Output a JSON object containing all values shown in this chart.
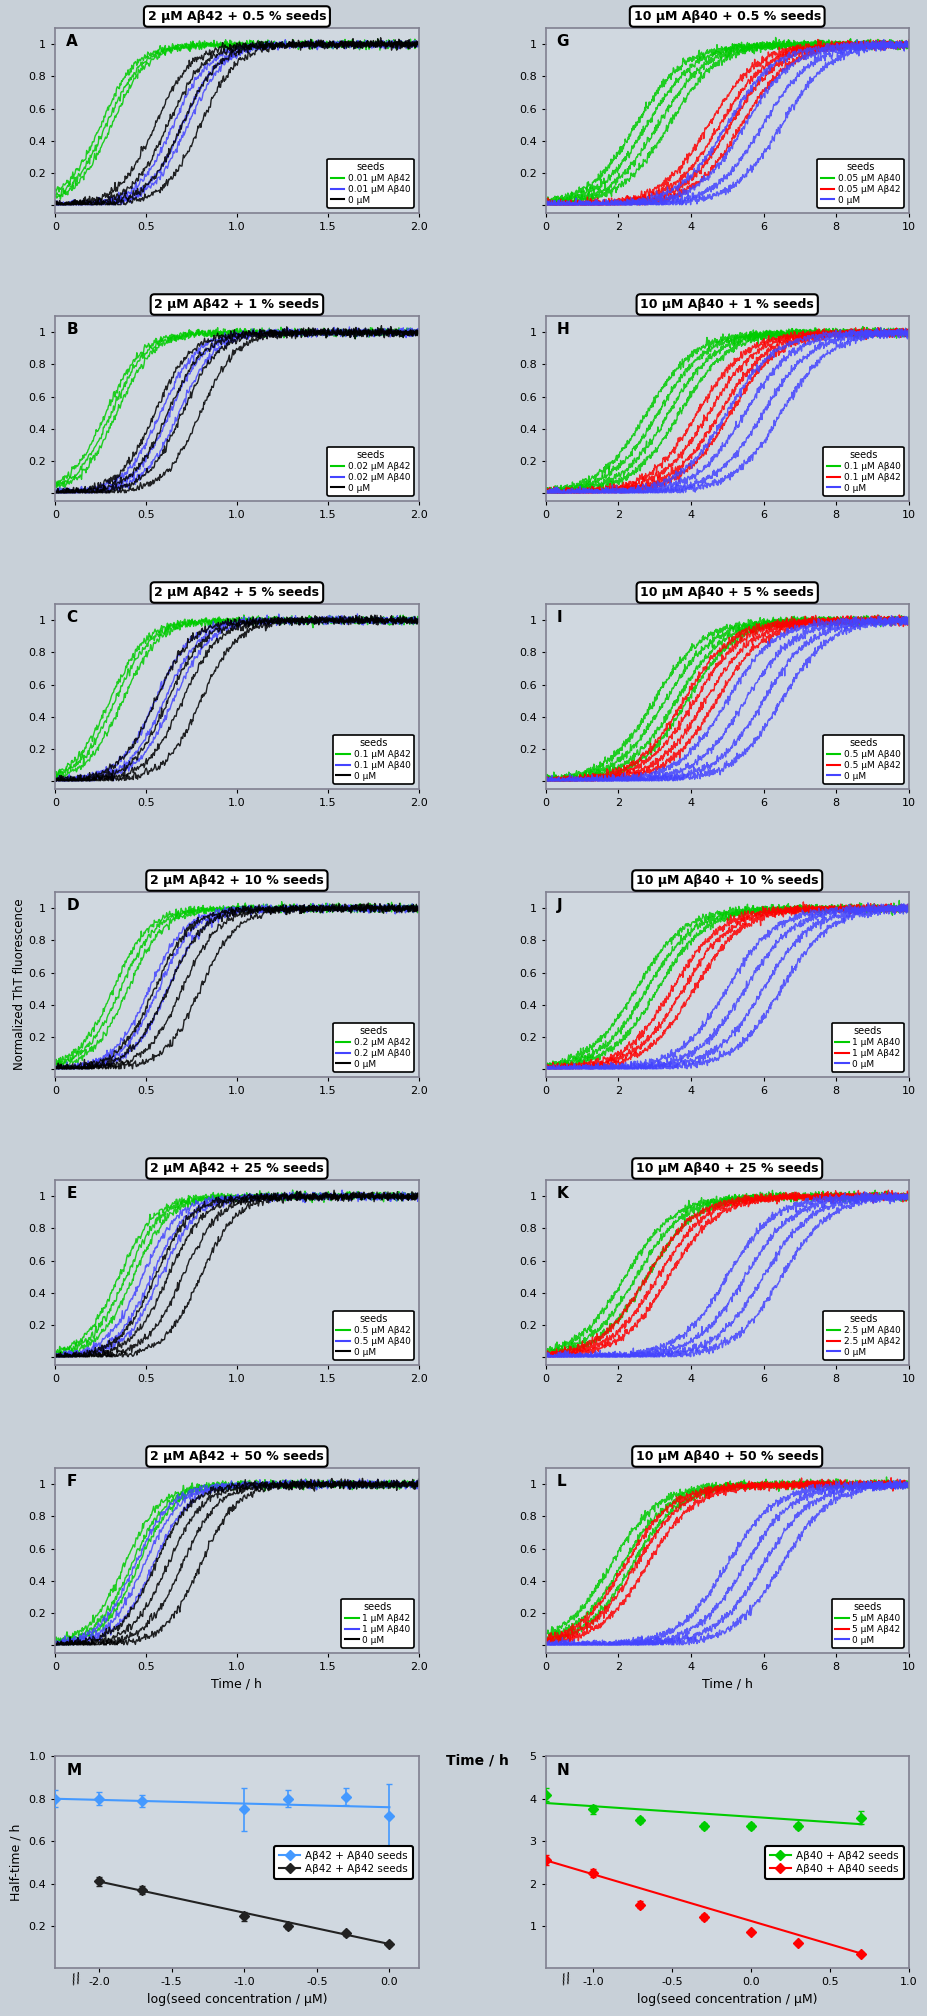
{
  "panels_left": [
    {
      "label": "A",
      "title": "2 μM Aβ42 + 0.5 % seeds",
      "xlim": [
        0,
        2
      ],
      "xticks": [
        0,
        0.5,
        1.0,
        1.5,
        2.0
      ],
      "legend": [
        "0.01 μM Aβ42",
        "0.01 μM Aβ40",
        "0 μM"
      ],
      "colors_legend": [
        "#00cc00",
        "#4444ff",
        "#000000"
      ]
    },
    {
      "label": "B",
      "title": "2 μM Aβ42 + 1 % seeds",
      "xlim": [
        0,
        2
      ],
      "xticks": [
        0,
        0.5,
        1.0,
        1.5,
        2.0
      ],
      "legend": [
        "0.02 μM Aβ42",
        "0.02 μM Aβ40",
        "0 μM"
      ],
      "colors_legend": [
        "#00cc00",
        "#4444ff",
        "#000000"
      ]
    },
    {
      "label": "C",
      "title": "2 μM Aβ42 + 5 % seeds",
      "xlim": [
        0,
        2
      ],
      "xticks": [
        0,
        0.5,
        1.0,
        1.5,
        2.0
      ],
      "legend": [
        "0.1 μM Aβ42",
        "0.1 μM Aβ40",
        "0 μM"
      ],
      "colors_legend": [
        "#00cc00",
        "#4444ff",
        "#000000"
      ]
    },
    {
      "label": "D",
      "title": "2 μM Aβ42 + 10 % seeds",
      "xlim": [
        0,
        2
      ],
      "xticks": [
        0,
        0.5,
        1.0,
        1.5,
        2.0
      ],
      "legend": [
        "0.2 μM Aβ42",
        "0.2 μM Aβ40",
        "0 μM"
      ],
      "colors_legend": [
        "#00cc00",
        "#4444ff",
        "#000000"
      ]
    },
    {
      "label": "E",
      "title": "2 μM Aβ42 + 25 % seeds",
      "xlim": [
        0,
        2
      ],
      "xticks": [
        0,
        0.5,
        1.0,
        1.5,
        2.0
      ],
      "legend": [
        "0.5 μM Aβ42",
        "0.5 μM Aβ40",
        "0 μM"
      ],
      "colors_legend": [
        "#00cc00",
        "#4444ff",
        "#000000"
      ]
    },
    {
      "label": "F",
      "title": "2 μM Aβ42 + 50 % seeds",
      "xlim": [
        0,
        2
      ],
      "xticks": [
        0,
        0.5,
        1.0,
        1.5,
        2.0
      ],
      "legend": [
        "1 μM Aβ42",
        "1 μM Aβ40",
        "0 μM"
      ],
      "colors_legend": [
        "#00cc00",
        "#4444ff",
        "#000000"
      ]
    }
  ],
  "panels_right": [
    {
      "label": "G",
      "title": "10 μM Aβ40 + 0.5 % seeds",
      "xlim": [
        0,
        10
      ],
      "xticks": [
        0,
        2,
        4,
        6,
        8,
        10
      ],
      "legend": [
        "0.05 μM Aβ40",
        "0.05 μM Aβ42",
        "0 μM"
      ],
      "colors_legend": [
        "#00cc00",
        "#ff0000",
        "#4444ff"
      ]
    },
    {
      "label": "H",
      "title": "10 μM Aβ40 + 1 % seeds",
      "xlim": [
        0,
        10
      ],
      "xticks": [
        0,
        2,
        4,
        6,
        8,
        10
      ],
      "legend": [
        "0.1 μM Aβ40",
        "0.1 μM Aβ42",
        "0 μM"
      ],
      "colors_legend": [
        "#00cc00",
        "#ff0000",
        "#4444ff"
      ]
    },
    {
      "label": "I",
      "title": "10 μM Aβ40 + 5 % seeds",
      "xlim": [
        0,
        10
      ],
      "xticks": [
        0,
        2,
        4,
        6,
        8,
        10
      ],
      "legend": [
        "0.5 μM Aβ40",
        "0.5 μM Aβ42",
        "0 μM"
      ],
      "colors_legend": [
        "#00cc00",
        "#ff0000",
        "#4444ff"
      ]
    },
    {
      "label": "J",
      "title": "10 μM Aβ40 + 10 % seeds",
      "xlim": [
        0,
        10
      ],
      "xticks": [
        0,
        2,
        4,
        6,
        8,
        10
      ],
      "legend": [
        "1 μM Aβ40",
        "1 μM Aβ42",
        "0 μM"
      ],
      "colors_legend": [
        "#00cc00",
        "#ff0000",
        "#4444ff"
      ]
    },
    {
      "label": "K",
      "title": "10 μM Aβ40 + 25 % seeds",
      "xlim": [
        0,
        10
      ],
      "xticks": [
        0,
        2,
        4,
        6,
        8,
        10
      ],
      "legend": [
        "2.5 μM Aβ40",
        "2.5 μM Aβ42",
        "0 μM"
      ],
      "colors_legend": [
        "#00cc00",
        "#ff0000",
        "#4444ff"
      ]
    },
    {
      "label": "L",
      "title": "10 μM Aβ40 + 50 % seeds",
      "xlim": [
        0,
        10
      ],
      "xticks": [
        0,
        2,
        4,
        6,
        8,
        10
      ],
      "legend": [
        "5 μM Aβ40",
        "5 μM Aβ42",
        "0 μM"
      ],
      "colors_legend": [
        "#00cc00",
        "#ff0000",
        "#4444ff"
      ]
    }
  ],
  "panel_M": {
    "label": "M",
    "xlabel": "log(seed concentration / μM)",
    "ylabel": "Half-time / h",
    "xlim": [
      -2.3,
      0.2
    ],
    "xticks": [
      -2.0,
      -1.5,
      -1.0,
      -0.5,
      0.0
    ],
    "ylim": [
      0,
      1.0
    ],
    "yticks": [
      0.2,
      0.4,
      0.6,
      0.8,
      1.0
    ],
    "blue_x": [
      -2.3,
      -2.0,
      -1.7,
      -1.0,
      -0.7,
      -0.3,
      0.0
    ],
    "blue_y": [
      0.8,
      0.8,
      0.79,
      0.75,
      0.8,
      0.81,
      0.72
    ],
    "blue_yerr": [
      0.04,
      0.03,
      0.03,
      0.1,
      0.04,
      0.04,
      0.15
    ],
    "blue_fit_x": [
      -2.3,
      0.0
    ],
    "blue_fit_y": [
      0.8,
      0.76
    ],
    "black_x": [
      -2.0,
      -1.7,
      -1.0,
      -0.7,
      -0.3,
      0.0
    ],
    "black_y": [
      0.41,
      0.37,
      0.245,
      0.2,
      0.165,
      0.115
    ],
    "black_yerr": [
      0.02,
      0.02,
      0.02,
      0.015,
      0.01,
      0.01
    ],
    "black_fit_x": [
      -2.0,
      0.0
    ],
    "black_fit_y": [
      0.41,
      0.115
    ],
    "legend_labels": [
      "Aβ42 + Aβ40 seeds",
      "Aβ42 + Aβ42 seeds"
    ],
    "legend_colors": [
      "#4499ff",
      "#222222"
    ]
  },
  "panel_N": {
    "label": "N",
    "xlabel": "log(seed concentration / μM)",
    "ylabel": "Half-time / h",
    "xlim": [
      -1.3,
      1.0
    ],
    "xticks": [
      -1.0,
      -0.5,
      0.0,
      0.5,
      1.0
    ],
    "ylim": [
      0,
      5.0
    ],
    "yticks": [
      1,
      2,
      3,
      4,
      5
    ],
    "green_x": [
      -1.3,
      -1.0,
      -0.7,
      -0.3,
      0.0,
      0.3,
      0.7
    ],
    "green_y": [
      4.1,
      3.75,
      3.5,
      3.35,
      3.35,
      3.35,
      3.55
    ],
    "green_yerr": [
      0.15,
      0.1,
      0.08,
      0.07,
      0.07,
      0.07,
      0.15
    ],
    "green_fit_x": [
      -1.3,
      0.7
    ],
    "green_fit_y": [
      3.9,
      3.4
    ],
    "red_x": [
      -1.3,
      -1.0,
      -0.7,
      -0.3,
      0.0,
      0.3,
      0.7
    ],
    "red_y": [
      2.55,
      2.25,
      1.5,
      1.22,
      0.85,
      0.6,
      0.35
    ],
    "red_yerr": [
      0.12,
      0.1,
      0.08,
      0.07,
      0.05,
      0.04,
      0.03
    ],
    "red_fit_x": [
      -1.3,
      0.7
    ],
    "red_fit_y": [
      2.55,
      0.35
    ],
    "legend_labels": [
      "Aβ40 + Aβ42 seeds",
      "Aβ40 + Aβ40 seeds"
    ],
    "legend_colors": [
      "#00cc00",
      "#ff0000"
    ]
  },
  "ylabel_fluorescence": "Normalized ThT fluorescence",
  "xlabel_time": "Time / h",
  "bg_color": "#d0d8e0",
  "spine_color": "#808090",
  "green": "#00cc00",
  "blue": "#4444ff",
  "black": "#000000",
  "red": "#ff0000",
  "light_blue": "#4499ff",
  "left_params": [
    {
      "green_halfs": [
        0.25,
        0.28,
        0.31
      ],
      "blue_halfs": [
        0.65,
        0.7,
        0.73
      ],
      "black_halfs": [
        0.55,
        0.62,
        0.7,
        0.8
      ]
    },
    {
      "green_halfs": [
        0.28,
        0.31,
        0.34
      ],
      "blue_halfs": [
        0.58,
        0.63,
        0.68
      ],
      "black_halfs": [
        0.55,
        0.62,
        0.7,
        0.8
      ]
    },
    {
      "green_halfs": [
        0.3,
        0.33,
        0.37
      ],
      "blue_halfs": [
        0.55,
        0.6,
        0.65
      ],
      "black_halfs": [
        0.55,
        0.62,
        0.7,
        0.8
      ]
    },
    {
      "green_halfs": [
        0.32,
        0.36,
        0.4
      ],
      "blue_halfs": [
        0.52,
        0.57,
        0.62
      ],
      "black_halfs": [
        0.55,
        0.62,
        0.7,
        0.8
      ]
    },
    {
      "green_halfs": [
        0.35,
        0.39,
        0.43
      ],
      "blue_halfs": [
        0.48,
        0.53,
        0.58
      ],
      "black_halfs": [
        0.55,
        0.62,
        0.7,
        0.8
      ]
    },
    {
      "green_halfs": [
        0.38,
        0.42,
        0.46
      ],
      "blue_halfs": [
        0.44,
        0.49,
        0.54
      ],
      "black_halfs": [
        0.55,
        0.62,
        0.7,
        0.8
      ]
    }
  ],
  "right_params": [
    {
      "green_halfs": [
        2.5,
        2.8,
        3.1,
        3.4
      ],
      "red_halfs": [
        4.5,
        4.8,
        5.1,
        5.4
      ],
      "blue_halfs": [
        5.0,
        5.5,
        6.0,
        6.5
      ]
    },
    {
      "green_halfs": [
        2.8,
        3.1,
        3.4,
        3.7
      ],
      "red_halfs": [
        4.2,
        4.5,
        4.8,
        5.1
      ],
      "blue_halfs": [
        5.0,
        5.5,
        6.0,
        6.5
      ]
    },
    {
      "green_halfs": [
        3.0,
        3.3,
        3.6,
        3.9
      ],
      "red_halfs": [
        3.8,
        4.1,
        4.4,
        4.7
      ],
      "blue_halfs": [
        5.0,
        5.5,
        6.0,
        6.5
      ]
    },
    {
      "green_halfs": [
        2.5,
        2.8,
        3.1
      ],
      "red_halfs": [
        3.5,
        3.8,
        4.1
      ],
      "blue_halfs": [
        5.0,
        5.5,
        6.0,
        6.5
      ]
    },
    {
      "green_halfs": [
        2.2,
        2.5,
        2.8
      ],
      "red_halfs": [
        2.8,
        3.1,
        3.4
      ],
      "blue_halfs": [
        5.0,
        5.5,
        6.0,
        6.5
      ]
    },
    {
      "green_halfs": [
        1.8,
        2.1,
        2.4
      ],
      "red_halfs": [
        2.2,
        2.5,
        2.8
      ],
      "blue_halfs": [
        5.0,
        5.5,
        6.0,
        6.5
      ]
    }
  ]
}
